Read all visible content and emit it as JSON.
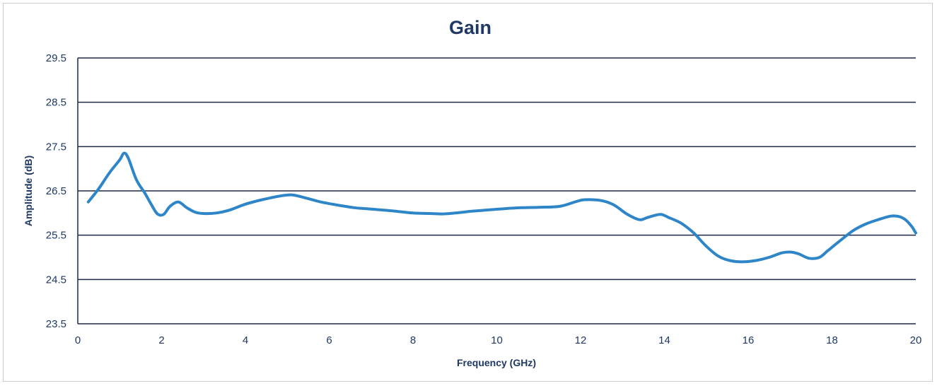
{
  "chart_data": {
    "type": "line",
    "title": "Gain",
    "xlabel": "Frequency (GHz)",
    "ylabel": "Amplitude (dB)",
    "xlim": [
      0,
      20
    ],
    "ylim": [
      23.5,
      29.5
    ],
    "x_ticks": [
      "0",
      "2",
      "4",
      "6",
      "8",
      "10",
      "12",
      "14",
      "16",
      "18",
      "20"
    ],
    "y_ticks": [
      "23.5",
      "24.5",
      "25.5",
      "26.5",
      "27.5",
      "28.5",
      "29.5"
    ],
    "grid": "horizontal",
    "legend": "none",
    "series": [
      {
        "color": "#2e86c8",
        "x": [
          0.25,
          0.5,
          0.75,
          1.0,
          1.1,
          1.2,
          1.4,
          1.6,
          1.75,
          1.9,
          2.05,
          2.2,
          2.4,
          2.6,
          2.8,
          3.0,
          3.3,
          3.6,
          4.0,
          4.4,
          4.8,
          5.1,
          5.4,
          5.8,
          6.2,
          6.6,
          7.0,
          7.5,
          8.0,
          8.4,
          8.7,
          9.0,
          9.4,
          9.8,
          10.2,
          10.6,
          11.0,
          11.5,
          11.9,
          12.1,
          12.5,
          12.8,
          13.1,
          13.4,
          13.6,
          13.9,
          14.1,
          14.4,
          14.7,
          15.0,
          15.3,
          15.6,
          15.9,
          16.2,
          16.5,
          16.8,
          17.0,
          17.2,
          17.45,
          17.7,
          17.9,
          18.2,
          18.5,
          18.8,
          19.1,
          19.4,
          19.6,
          19.75,
          19.9,
          20.0
        ],
        "values": [
          26.25,
          26.55,
          26.9,
          27.2,
          27.35,
          27.25,
          26.75,
          26.45,
          26.2,
          25.98,
          25.97,
          26.15,
          26.25,
          26.12,
          26.02,
          25.99,
          26.0,
          26.06,
          26.2,
          26.3,
          26.38,
          26.41,
          26.35,
          26.25,
          26.18,
          26.12,
          26.09,
          26.05,
          26.0,
          25.99,
          25.98,
          26.0,
          26.04,
          26.07,
          26.1,
          26.12,
          26.13,
          26.15,
          26.26,
          26.3,
          26.28,
          26.18,
          25.98,
          25.85,
          25.9,
          25.97,
          25.9,
          25.77,
          25.55,
          25.25,
          25.02,
          24.92,
          24.9,
          24.93,
          25.0,
          25.1,
          25.12,
          25.08,
          24.98,
          25.0,
          25.15,
          25.38,
          25.6,
          25.75,
          25.85,
          25.93,
          25.92,
          25.85,
          25.7,
          25.55
        ]
      }
    ]
  }
}
